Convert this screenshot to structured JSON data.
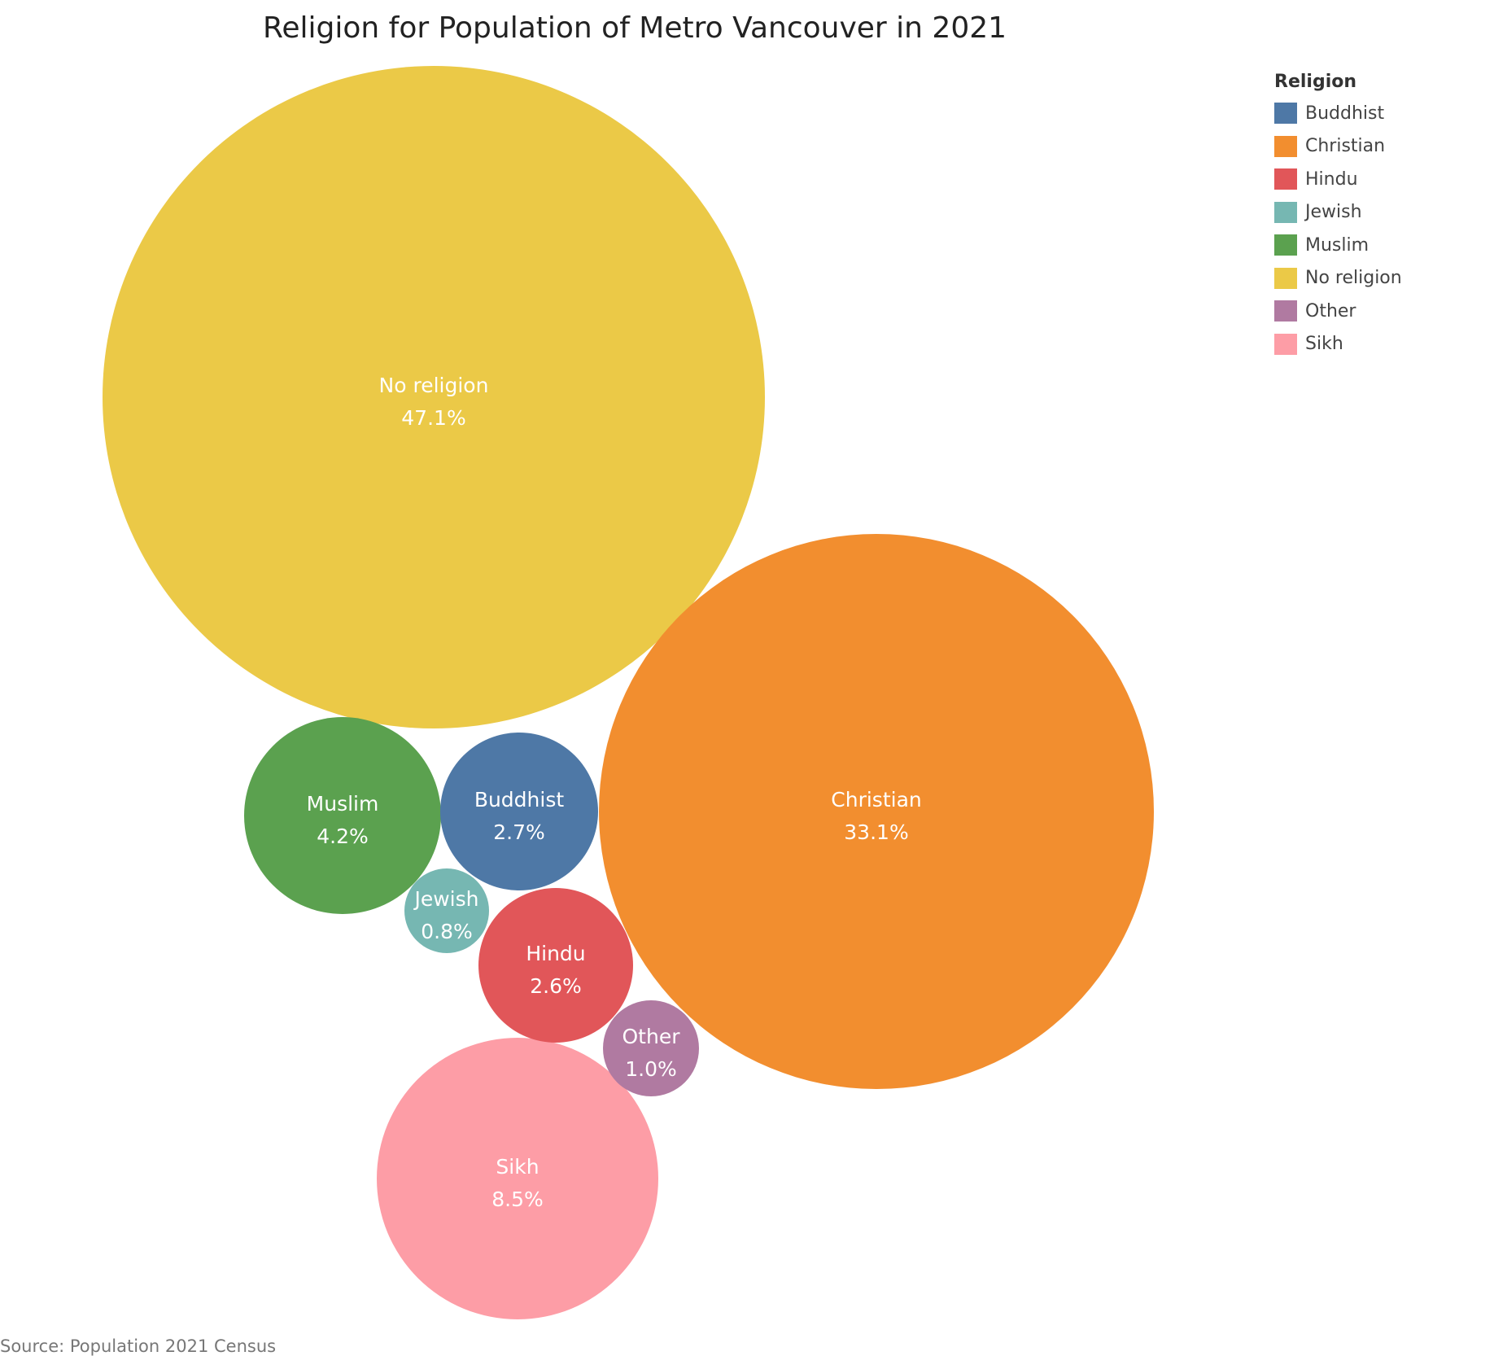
{
  "chart_data": {
    "type": "bubble",
    "title": "Religion for Population of Metro Vancouver in 2021",
    "legend": {
      "title": "Religion",
      "placement": "top-right",
      "entries": [
        "Buddhist",
        "Christian",
        "Hindu",
        "Jewish",
        "Muslim",
        "No religion",
        "Other",
        "Sikh"
      ]
    },
    "series": [
      {
        "category": "No religion",
        "value": 47.1,
        "label": "47.1%",
        "color": "#EBC947"
      },
      {
        "category": "Christian",
        "value": 33.1,
        "label": "33.1%",
        "color": "#F28E2F"
      },
      {
        "category": "Sikh",
        "value": 8.5,
        "label": "8.5%",
        "color": "#FD9DA6"
      },
      {
        "category": "Muslim",
        "value": 4.2,
        "label": "4.2%",
        "color": "#5BA14F"
      },
      {
        "category": "Buddhist",
        "value": 2.7,
        "label": "2.7%",
        "color": "#4E78A6"
      },
      {
        "category": "Hindu",
        "value": 2.6,
        "label": "2.6%",
        "color": "#E15659"
      },
      {
        "category": "Other",
        "value": 1.0,
        "label": "1.0%",
        "color": "#B07AA1"
      },
      {
        "category": "Jewish",
        "value": 0.8,
        "label": "0.8%",
        "color": "#76B7B2"
      }
    ],
    "colors": {
      "Buddhist": "#4E78A6",
      "Christian": "#F28E2F",
      "Hindu": "#E15659",
      "Jewish": "#76B7B2",
      "Muslim": "#5BA14F",
      "No religion": "#EBC947",
      "Other": "#B07AA1",
      "Sikh": "#FD9DA6"
    },
    "source": "Source: Population 2021 Census"
  }
}
